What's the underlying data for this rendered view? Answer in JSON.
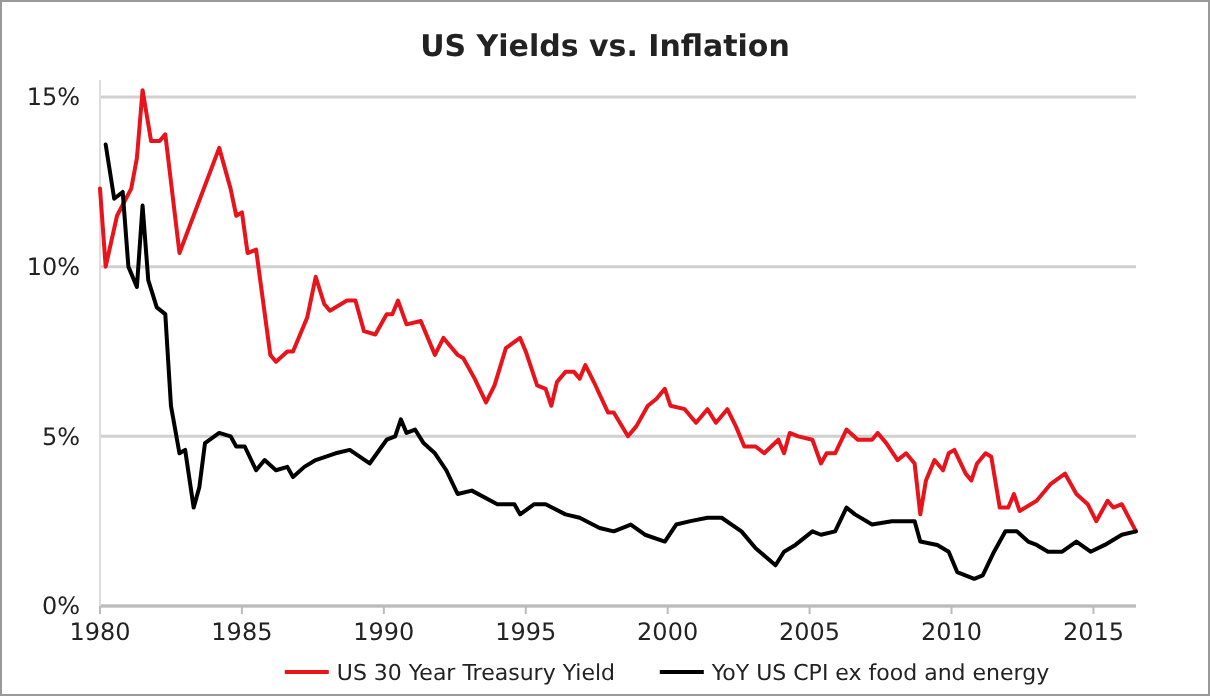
{
  "chart_data": {
    "type": "line",
    "title": "US Yields vs. Inflation",
    "xlim": [
      1980,
      2016.5
    ],
    "xticks": [
      1980,
      1985,
      1990,
      1995,
      2000,
      2005,
      2010,
      2015
    ],
    "ylim": [
      0,
      15.5
    ],
    "yticks": [
      {
        "value": 0,
        "label": "0%"
      },
      {
        "value": 5,
        "label": "5%"
      },
      {
        "value": 10,
        "label": "10%"
      },
      {
        "value": 15,
        "label": "15%"
      }
    ],
    "grid": "y",
    "legend": "bottom",
    "marker": "none",
    "line_style": "solid",
    "series": [
      {
        "name": "US 30 Year Treasury Yield",
        "color": "#e8141c",
        "x": [
          1980.0,
          1980.2,
          1980.6,
          1981.1,
          1981.3,
          1981.5,
          1981.8,
          1982.1,
          1982.3,
          1982.8,
          1984.2,
          1984.6,
          1984.8,
          1985.0,
          1985.2,
          1985.5,
          1986.0,
          1986.2,
          1986.6,
          1986.8,
          1987.3,
          1987.6,
          1987.9,
          1988.1,
          1988.7,
          1989.0,
          1989.3,
          1989.7,
          1990.1,
          1990.3,
          1990.5,
          1990.8,
          1991.3,
          1991.8,
          1992.1,
          1992.6,
          1992.8,
          1993.2,
          1993.6,
          1993.9,
          1994.3,
          1994.8,
          1995.0,
          1995.4,
          1995.7,
          1995.9,
          1996.1,
          1996.4,
          1996.7,
          1996.9,
          1997.1,
          1997.4,
          1997.9,
          1998.1,
          1998.6,
          1998.9,
          1999.3,
          1999.6,
          1999.9,
          2000.1,
          2000.6,
          2001.0,
          2001.4,
          2001.7,
          2002.1,
          2002.4,
          2002.7,
          2003.1,
          2003.4,
          2003.9,
          2004.1,
          2004.3,
          2004.6,
          2005.1,
          2005.4,
          2005.6,
          2005.9,
          2006.3,
          2006.7,
          2007.2,
          2007.4,
          2007.7,
          2008.1,
          2008.4,
          2008.7,
          2008.9,
          2009.1,
          2009.4,
          2009.7,
          2009.9,
          2010.1,
          2010.5,
          2010.7,
          2010.9,
          2011.2,
          2011.4,
          2011.7,
          2012.0,
          2012.2,
          2012.4,
          2013.0,
          2013.5,
          2014.0,
          2014.4,
          2014.8,
          2015.1,
          2015.5,
          2015.7,
          2016.0,
          2016.5
        ],
        "values": [
          12.3,
          10.0,
          11.5,
          12.3,
          13.2,
          15.2,
          13.7,
          13.7,
          13.9,
          10.4,
          13.5,
          12.3,
          11.5,
          11.6,
          10.4,
          10.5,
          7.4,
          7.2,
          7.5,
          7.5,
          8.5,
          9.7,
          8.9,
          8.7,
          9.0,
          9.0,
          8.1,
          8.0,
          8.6,
          8.6,
          9.0,
          8.3,
          8.4,
          7.4,
          7.9,
          7.4,
          7.3,
          6.7,
          6.0,
          6.5,
          7.6,
          7.9,
          7.5,
          6.5,
          6.4,
          5.9,
          6.6,
          6.9,
          6.9,
          6.7,
          7.1,
          6.6,
          5.7,
          5.7,
          5.0,
          5.3,
          5.9,
          6.1,
          6.4,
          5.9,
          5.8,
          5.4,
          5.8,
          5.4,
          5.8,
          5.3,
          4.7,
          4.7,
          4.5,
          4.9,
          4.5,
          5.1,
          5.0,
          4.9,
          4.2,
          4.5,
          4.5,
          5.2,
          4.9,
          4.9,
          5.1,
          4.8,
          4.3,
          4.5,
          4.2,
          2.7,
          3.7,
          4.3,
          4.0,
          4.5,
          4.6,
          3.9,
          3.7,
          4.2,
          4.5,
          4.4,
          2.9,
          2.9,
          3.3,
          2.8,
          3.1,
          3.6,
          3.9,
          3.3,
          3.0,
          2.5,
          3.1,
          2.9,
          3.0,
          2.2
        ]
      },
      {
        "name": "YoY US CPI ex food and energy",
        "color": "#000000",
        "x": [
          1980.2,
          1980.5,
          1980.8,
          1981.0,
          1981.3,
          1981.5,
          1981.7,
          1982.0,
          1982.3,
          1982.5,
          1982.8,
          1983.0,
          1983.3,
          1983.5,
          1983.7,
          1984.2,
          1984.6,
          1984.8,
          1985.1,
          1985.5,
          1985.8,
          1986.2,
          1986.6,
          1986.8,
          1987.2,
          1987.6,
          1988.3,
          1988.8,
          1989.5,
          1990.1,
          1990.4,
          1990.6,
          1990.8,
          1991.1,
          1991.4,
          1991.8,
          1992.2,
          1992.6,
          1993.1,
          1994.0,
          1994.6,
          1994.8,
          1995.3,
          1995.7,
          1996.4,
          1996.9,
          1997.6,
          1998.1,
          1998.7,
          1999.2,
          1999.9,
          2000.3,
          2000.8,
          2001.4,
          2001.9,
          2002.6,
          2003.1,
          2003.8,
          2004.1,
          2004.5,
          2005.1,
          2005.4,
          2005.9,
          2006.3,
          2006.6,
          2007.2,
          2007.9,
          2008.7,
          2008.9,
          2009.5,
          2009.9,
          2010.2,
          2010.8,
          2011.1,
          2011.5,
          2011.9,
          2012.3,
          2012.7,
          2013.0,
          2013.4,
          2013.9,
          2014.4,
          2014.9,
          2015.4,
          2016.0,
          2016.5
        ],
        "values": [
          13.6,
          12.0,
          12.2,
          10.0,
          9.4,
          11.8,
          9.6,
          8.8,
          8.6,
          5.9,
          4.5,
          4.6,
          2.9,
          3.5,
          4.8,
          5.1,
          5.0,
          4.7,
          4.7,
          4.0,
          4.3,
          4.0,
          4.1,
          3.8,
          4.1,
          4.3,
          4.5,
          4.6,
          4.2,
          4.9,
          5.0,
          5.5,
          5.1,
          5.2,
          4.8,
          4.5,
          4.0,
          3.3,
          3.4,
          3.0,
          3.0,
          2.7,
          3.0,
          3.0,
          2.7,
          2.6,
          2.3,
          2.2,
          2.4,
          2.1,
          1.9,
          2.4,
          2.5,
          2.6,
          2.6,
          2.2,
          1.7,
          1.2,
          1.6,
          1.8,
          2.2,
          2.1,
          2.2,
          2.9,
          2.7,
          2.4,
          2.5,
          2.5,
          1.9,
          1.8,
          1.6,
          1.0,
          0.8,
          0.9,
          1.6,
          2.2,
          2.2,
          1.9,
          1.8,
          1.6,
          1.6,
          1.9,
          1.6,
          1.8,
          2.1,
          2.2
        ]
      }
    ]
  }
}
